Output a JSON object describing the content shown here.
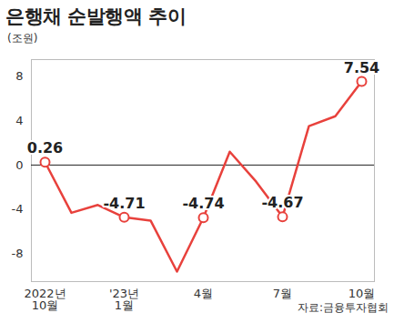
{
  "chart_data": {
    "type": "line",
    "title": "은행채 순발행액 추이",
    "y_label": "(조원)",
    "source": "자료:금융투자협회",
    "categories": [
      "2022년\n10월",
      null,
      null,
      "'23년\n1월",
      null,
      null,
      "4월",
      null,
      null,
      "7월",
      null,
      null,
      "10월"
    ],
    "values": [
      0.26,
      -4.3,
      -3.6,
      -4.71,
      -5.0,
      -9.6,
      -4.74,
      1.2,
      -1.5,
      -4.67,
      3.5,
      4.4,
      7.54
    ],
    "value_labels": [
      "0.26",
      null,
      null,
      "-4.71",
      null,
      null,
      "-4.74",
      null,
      null,
      "-4.67",
      null,
      null,
      "7.54"
    ],
    "data_labels": true,
    "color": "#e8413c",
    "marker": "circle",
    "ylim": [
      -10.5,
      9.5
    ],
    "yticks": [
      -8,
      -4,
      0,
      4,
      8
    ],
    "grid": false
  }
}
